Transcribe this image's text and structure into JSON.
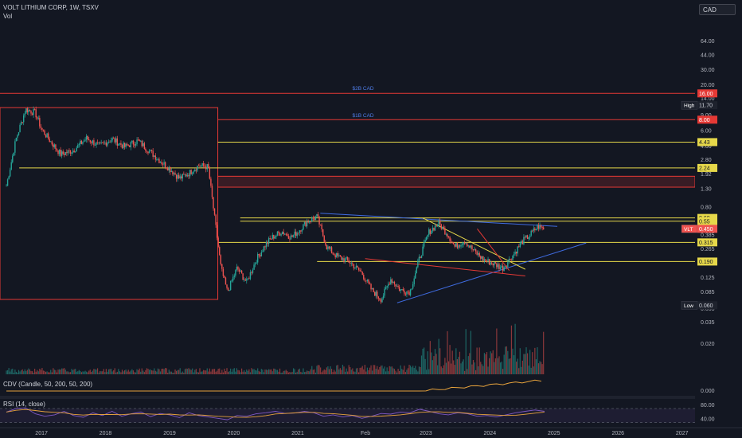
{
  "header": {
    "symbol_line": "VOLT LITHIUM CORP, 1W, TSXV",
    "volume_label": "Vol",
    "currency_button": "CAD"
  },
  "colors": {
    "background": "#131722",
    "bull": "#26a69a",
    "bear": "#ef5350",
    "level_yellow": "#e6d84a",
    "level_red": "#e53935",
    "trend_blue": "#3f6be0",
    "cdv_line": "#e6a23c",
    "rsi_line": "#7e57c2",
    "rsi_ma": "#e6a23c"
  },
  "chart_data": {
    "type": "candlestick",
    "title": "VOLT LITHIUM CORP, 1W, TSXV",
    "price_axis": {
      "scale": "log",
      "ticks": [
        "64.00",
        "44.00",
        "30.00",
        "20.00",
        "14.00",
        "9.00",
        "6.00",
        "4.00",
        "2.80",
        "1.92",
        "1.30",
        "0.80",
        "0.385",
        "0.265",
        "0.125",
        "0.085",
        "0.055"
      ],
      "tick_values": [
        64,
        44,
        30,
        20,
        14,
        9,
        6,
        4,
        2.8,
        1.92,
        1.3,
        0.8,
        0.385,
        0.265,
        0.125,
        0.085,
        0.055
      ],
      "range": [
        0.05,
        100
      ]
    },
    "volume_axis": {
      "ticks": [
        "0.035",
        "0.020"
      ],
      "tick_values": [
        0.035,
        0.02
      ]
    },
    "time_axis": {
      "labels": [
        "2017",
        "2018",
        "2019",
        "2020",
        "2021",
        "Feb",
        "2023",
        "2024",
        "2025",
        "2026",
        "2027"
      ],
      "label_values": [
        2017,
        2018,
        2019,
        2020,
        2021,
        2022.08,
        2023,
        2024,
        2025,
        2026,
        2027
      ],
      "range": [
        2016.35,
        2027.2
      ]
    },
    "price_labels": [
      {
        "text": "16.00",
        "value": 16.0,
        "style": "red"
      },
      {
        "text": "11.70",
        "value": 11.7,
        "style": "high",
        "prefix": "High"
      },
      {
        "text": "8.00",
        "value": 8.0,
        "style": "red"
      },
      {
        "text": "4.43",
        "value": 4.43,
        "style": "yellow"
      },
      {
        "text": "2.24",
        "value": 2.24,
        "style": "yellow"
      },
      {
        "text": "0.60",
        "value": 0.6,
        "style": "yellow"
      },
      {
        "text": "0.55",
        "value": 0.55,
        "style": "yellow"
      },
      {
        "text": "0.450",
        "value": 0.45,
        "style": "last",
        "prefix": "VLT"
      },
      {
        "text": "0.315",
        "value": 0.315,
        "style": "yellow"
      },
      {
        "text": "0.190",
        "value": 0.19,
        "style": "yellow"
      },
      {
        "text": "0.060",
        "value": 0.06,
        "style": "low",
        "prefix": "Low"
      }
    ],
    "levels": [
      {
        "value": 16.0,
        "x_start": 2016.35,
        "color": "red"
      },
      {
        "value": 8.0,
        "x_start": 2019.75,
        "color": "red"
      },
      {
        "value": 4.43,
        "x_start": 2019.75,
        "color": "yellow"
      },
      {
        "value": 2.24,
        "x_start": 2016.65,
        "color": "yellow"
      },
      {
        "value": 0.6,
        "x_start": 2020.1,
        "color": "yellow"
      },
      {
        "value": 0.55,
        "x_start": 2020.1,
        "color": "yellow"
      },
      {
        "value": 0.315,
        "x_start": 2019.75,
        "color": "yellow"
      },
      {
        "value": 0.19,
        "x_start": 2021.3,
        "color": "yellow"
      }
    ],
    "zones": [
      {
        "x": [
          2016.35,
          2019.75
        ],
        "y": [
          0.07,
          11.0
        ],
        "color": "red"
      },
      {
        "x": [
          2019.75,
          2027.2
        ],
        "y": [
          1.35,
          1.8
        ],
        "color": "red"
      }
    ],
    "annotations": [
      {
        "text": "$2B CAD",
        "x": 2021.85,
        "y": 17.5
      },
      {
        "text": "$1B CAD",
        "x": 2021.85,
        "y": 8.6
      }
    ],
    "trendlines": [
      {
        "from": [
          2021.35,
          0.68
        ],
        "to": [
          2025.05,
          0.48
        ],
        "color": "blue"
      },
      {
        "from": [
          2022.55,
          0.064
        ],
        "to": [
          2025.5,
          0.31
        ],
        "color": "blue"
      },
      {
        "from": [
          2022.95,
          0.6
        ],
        "to": [
          2024.55,
          0.155
        ],
        "color": "yellow"
      },
      {
        "from": [
          2022.05,
          0.205
        ],
        "to": [
          2024.55,
          0.13
        ],
        "color": "red"
      },
      {
        "from": [
          2023.8,
          0.45
        ],
        "to": [
          2024.3,
          0.15
        ],
        "color": "red"
      }
    ],
    "price_series": {
      "x": [
        2016.45,
        2016.6,
        2016.75,
        2016.9,
        2017.0,
        2017.15,
        2017.3,
        2017.5,
        2017.7,
        2017.9,
        2018.1,
        2018.3,
        2018.5,
        2018.7,
        2018.85,
        2019.0,
        2019.15,
        2019.3,
        2019.45,
        2019.6,
        2019.7,
        2019.8,
        2019.9,
        2020.05,
        2020.2,
        2020.35,
        2020.5,
        2020.6,
        2020.75,
        2020.9,
        2021.0,
        2021.15,
        2021.3,
        2021.45,
        2021.6,
        2021.8,
        2022.0,
        2022.15,
        2022.3,
        2022.45,
        2022.6,
        2022.75,
        2022.9,
        2023.05,
        2023.2,
        2023.35,
        2023.45,
        2023.6,
        2023.75,
        2023.9,
        2024.05,
        2024.2,
        2024.35,
        2024.5,
        2024.6,
        2024.75,
        2024.85
      ],
      "y": [
        1.4,
        4.8,
        10.5,
        9.6,
        6.2,
        4.4,
        3.2,
        3.6,
        4.9,
        4.0,
        4.8,
        3.9,
        4.6,
        3.4,
        2.7,
        2.2,
        1.7,
        1.95,
        2.4,
        2.3,
        0.6,
        0.16,
        0.085,
        0.16,
        0.11,
        0.2,
        0.3,
        0.36,
        0.42,
        0.36,
        0.42,
        0.55,
        0.62,
        0.28,
        0.22,
        0.19,
        0.14,
        0.09,
        0.07,
        0.12,
        0.09,
        0.085,
        0.21,
        0.42,
        0.52,
        0.38,
        0.28,
        0.33,
        0.25,
        0.2,
        0.18,
        0.16,
        0.22,
        0.32,
        0.37,
        0.48,
        0.45
      ]
    },
    "cdv": {
      "name": "CDV (Candle, 50, 200, 50, 200)",
      "axis_tick": "0.000",
      "axis_value": 0.0
    },
    "rsi": {
      "name": "RSI (14, close)",
      "ticks": [
        "80.00",
        "40.00"
      ],
      "tick_values": [
        80,
        40
      ],
      "range": [
        20,
        95
      ],
      "values": [
        60,
        70,
        72,
        55,
        48,
        52,
        62,
        50,
        45,
        58,
        50,
        62,
        48,
        55,
        60,
        47,
        56,
        52,
        44,
        58,
        50,
        46,
        42,
        38,
        50,
        48,
        55,
        58,
        62,
        56,
        57,
        62,
        58,
        48,
        52,
        46,
        50,
        42,
        48,
        56,
        54,
        60,
        58,
        68,
        62,
        55,
        52,
        58,
        55,
        48,
        50,
        46,
        52,
        58,
        62,
        66,
        62
      ]
    }
  }
}
